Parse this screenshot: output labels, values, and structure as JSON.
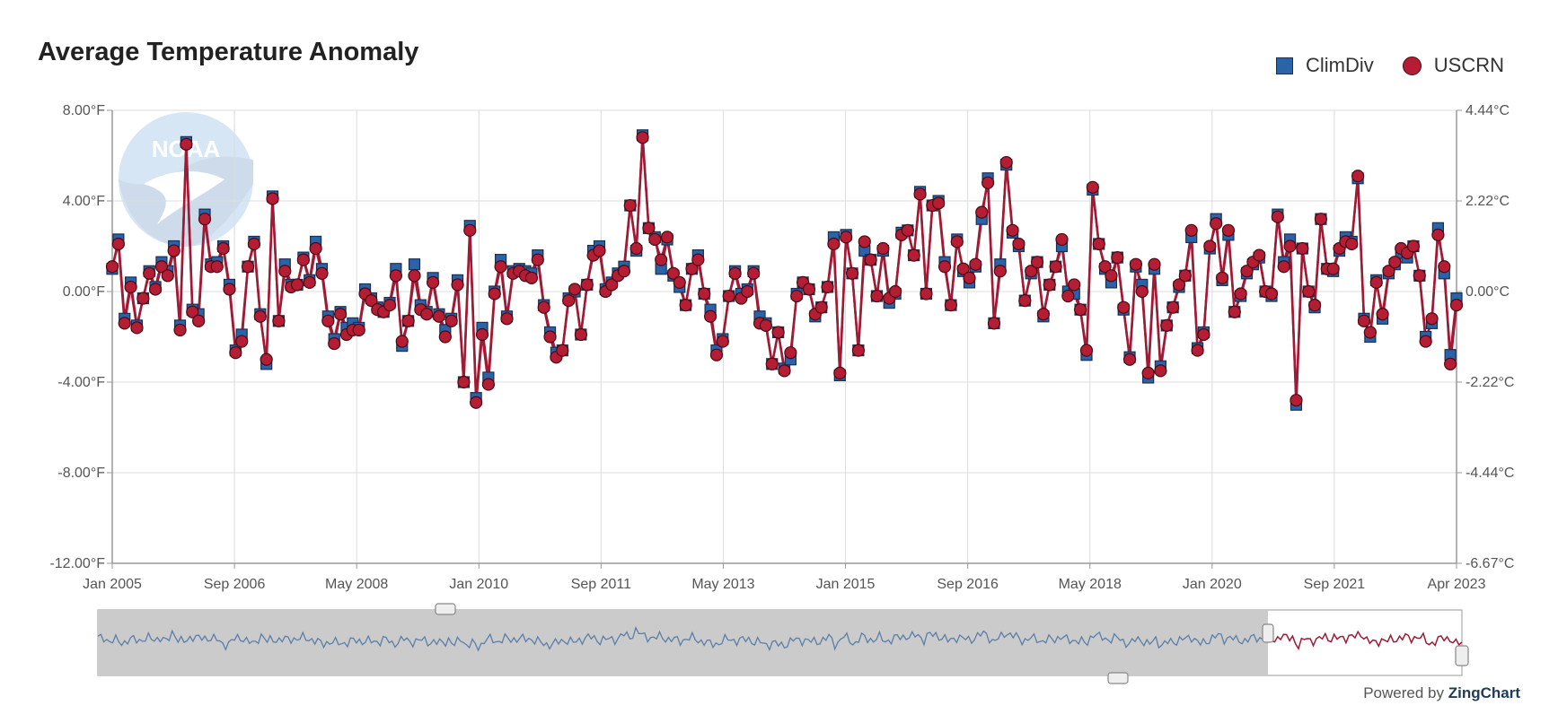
{
  "chart_data": {
    "type": "line",
    "title": "Average Temperature Anomaly",
    "legend": {
      "position": "top-right"
    },
    "grid": true,
    "x_ticks": [
      "Jan 2005",
      "Sep 2006",
      "May 2008",
      "Jan 2010",
      "Sep 2011",
      "May 2013",
      "Jan 2015",
      "Sep 2016",
      "May 2018",
      "Jan 2020",
      "Sep 2021",
      "Apr 2023"
    ],
    "y_ticks_left": [
      "8.00°F",
      "4.00°F",
      "0.00°F",
      "-4.00°F",
      "-8.00°F",
      "-12.00°F"
    ],
    "y_ticks_right": [
      "4.44°C",
      "2.22°C",
      "0.00°C",
      "-2.22°C",
      "-4.44°C",
      "-6.67°C"
    ],
    "ylim": [
      -12,
      8
    ],
    "x_range": [
      "Jan 2005",
      "Apr 2023"
    ],
    "colors": {
      "climdiv": "#2a63a8",
      "uscrn": "#b41d33",
      "line": "#9e1b36",
      "preview_line": "#5a7fa8"
    },
    "series": [
      {
        "name": "ClimDiv",
        "marker": "square",
        "values": [
          1.0,
          2.3,
          -1.2,
          0.4,
          -1.5,
          -0.3,
          0.9,
          0.2,
          1.3,
          0.9,
          2.0,
          -1.5,
          6.6,
          -0.8,
          -1.0,
          3.4,
          1.2,
          1.3,
          2.0,
          0.3,
          -2.6,
          -1.9,
          1.1,
          2.2,
          -1.0,
          -3.2,
          4.2,
          -1.3,
          1.2,
          0.3,
          0.3,
          1.5,
          0.5,
          2.2,
          1.0,
          -1.1,
          -2.1,
          -0.9,
          -1.6,
          -1.4,
          -1.6,
          0.1,
          -0.3,
          -0.7,
          -0.9,
          -0.5,
          1.0,
          -2.4,
          -1.3,
          1.2,
          -0.6,
          -0.9,
          0.6,
          -1.0,
          -1.7,
          -1.2,
          0.5,
          -4.0,
          2.9,
          -4.7,
          -1.6,
          -3.8,
          0.0,
          1.4,
          -1.1,
          0.9,
          1.0,
          0.9,
          0.8,
          1.6,
          -0.6,
          -1.8,
          -2.7,
          -2.6,
          -0.3,
          0.0,
          -1.9,
          0.3,
          1.8,
          2.0,
          0.1,
          0.4,
          0.8,
          1.1,
          3.8,
          1.8,
          6.9,
          2.8,
          2.4,
          1.0,
          2.3,
          0.7,
          0.2,
          -0.6,
          1.0,
          1.6,
          -0.1,
          -0.8,
          -2.6,
          -2.1,
          -0.2,
          0.9,
          -0.1,
          0.1,
          0.9,
          -1.1,
          -1.4,
          -3.2,
          -1.8,
          -3.4,
          -3.0,
          -0.1,
          0.4,
          0.1,
          -1.1,
          -0.7,
          0.2,
          2.4,
          -3.7,
          2.5,
          0.8,
          -2.6,
          1.8,
          1.4,
          -0.2,
          1.8,
          -0.5,
          -0.1,
          2.6,
          2.7,
          1.6,
          4.4,
          -0.1,
          3.8,
          4.0,
          1.3,
          -0.6,
          2.3,
          0.9,
          0.4,
          1.1,
          3.2,
          5.0,
          -1.4,
          1.2,
          5.6,
          2.6,
          2.0,
          -0.4,
          0.8,
          1.3,
          -1.1,
          0.3,
          1.1,
          2.0,
          0.0,
          -0.1,
          -0.8,
          -2.8,
          4.5,
          2.1,
          1.0,
          0.4,
          1.5,
          -0.8,
          -2.9,
          1.1,
          0.3,
          -3.8,
          1.0,
          -3.3,
          -1.5,
          -0.7,
          0.2,
          0.7,
          2.4,
          -2.5,
          -1.8,
          1.9,
          3.2,
          0.5,
          2.5,
          -0.9,
          -0.2,
          0.8,
          1.2,
          1.5,
          0.0,
          -0.2,
          3.4,
          1.3,
          2.3,
          -5.0,
          1.9,
          0.0,
          -0.7,
          3.2,
          1.0,
          0.9,
          1.8,
          2.4,
          2.2,
          5.0,
          -1.2,
          -2.0,
          0.5,
          -1.2,
          0.8,
          1.2,
          1.7,
          1.5,
          2.0,
          0.7,
          -2.0,
          -1.4,
          2.8,
          0.8,
          -2.8,
          -0.3
        ]
      },
      {
        "name": "USCRN",
        "marker": "circle",
        "values": [
          1.1,
          2.1,
          -1.4,
          0.2,
          -1.6,
          -0.3,
          0.8,
          0.1,
          1.1,
          0.7,
          1.8,
          -1.7,
          6.5,
          -0.9,
          -1.3,
          3.2,
          1.1,
          1.1,
          1.9,
          0.1,
          -2.7,
          -2.2,
          1.1,
          2.1,
          -1.1,
          -3.0,
          4.1,
          -1.3,
          0.9,
          0.2,
          0.3,
          1.4,
          0.4,
          1.9,
          0.8,
          -1.3,
          -2.3,
          -1.0,
          -1.9,
          -1.7,
          -1.7,
          -0.1,
          -0.4,
          -0.8,
          -0.9,
          -0.6,
          0.7,
          -2.2,
          -1.3,
          0.7,
          -0.8,
          -1.0,
          0.4,
          -1.1,
          -2.0,
          -1.3,
          0.3,
          -4.0,
          2.7,
          -4.9,
          -1.9,
          -4.1,
          -0.1,
          1.1,
          -1.2,
          0.8,
          0.9,
          0.7,
          0.6,
          1.4,
          -0.7,
          -2.0,
          -2.9,
          -2.6,
          -0.4,
          0.1,
          -1.9,
          0.3,
          1.6,
          1.8,
          0.0,
          0.3,
          0.7,
          0.9,
          3.8,
          1.9,
          6.8,
          2.8,
          2.3,
          1.4,
          2.4,
          0.8,
          0.4,
          -0.6,
          1.0,
          1.4,
          -0.1,
          -1.1,
          -2.8,
          -2.2,
          -0.2,
          0.8,
          -0.3,
          0.0,
          0.8,
          -1.4,
          -1.5,
          -3.2,
          -1.8,
          -3.5,
          -2.7,
          -0.2,
          0.4,
          0.1,
          -1.0,
          -0.7,
          0.2,
          2.1,
          -3.6,
          2.4,
          0.8,
          -2.6,
          2.2,
          1.4,
          -0.2,
          1.9,
          -0.3,
          0.0,
          2.5,
          2.7,
          1.6,
          4.3,
          -0.1,
          3.8,
          3.9,
          1.1,
          -0.6,
          2.2,
          1.0,
          0.6,
          1.2,
          3.5,
          4.8,
          -1.4,
          0.9,
          5.7,
          2.7,
          2.1,
          -0.4,
          0.9,
          1.3,
          -1.0,
          0.3,
          1.1,
          2.3,
          -0.2,
          0.3,
          -0.8,
          -2.6,
          4.6,
          2.1,
          1.1,
          0.7,
          1.5,
          -0.7,
          -3.0,
          1.2,
          0.0,
          -3.6,
          1.2,
          -3.5,
          -1.5,
          -0.7,
          0.3,
          0.7,
          2.7,
          -2.6,
          -1.9,
          2.0,
          3.0,
          0.6,
          2.7,
          -0.9,
          -0.1,
          0.9,
          1.3,
          1.6,
          0.0,
          -0.1,
          3.3,
          1.1,
          2.0,
          -4.8,
          1.9,
          0.0,
          -0.6,
          3.2,
          1.0,
          1.0,
          1.9,
          2.2,
          2.1,
          5.1,
          -1.3,
          -1.8,
          0.4,
          -1.0,
          0.9,
          1.3,
          1.9,
          1.7,
          2.0,
          0.7,
          -2.2,
          -1.2,
          2.5,
          1.1,
          -3.2,
          -0.6
        ]
      }
    ]
  },
  "credit": {
    "prefix": "Powered by",
    "brand": "ZingChart"
  }
}
